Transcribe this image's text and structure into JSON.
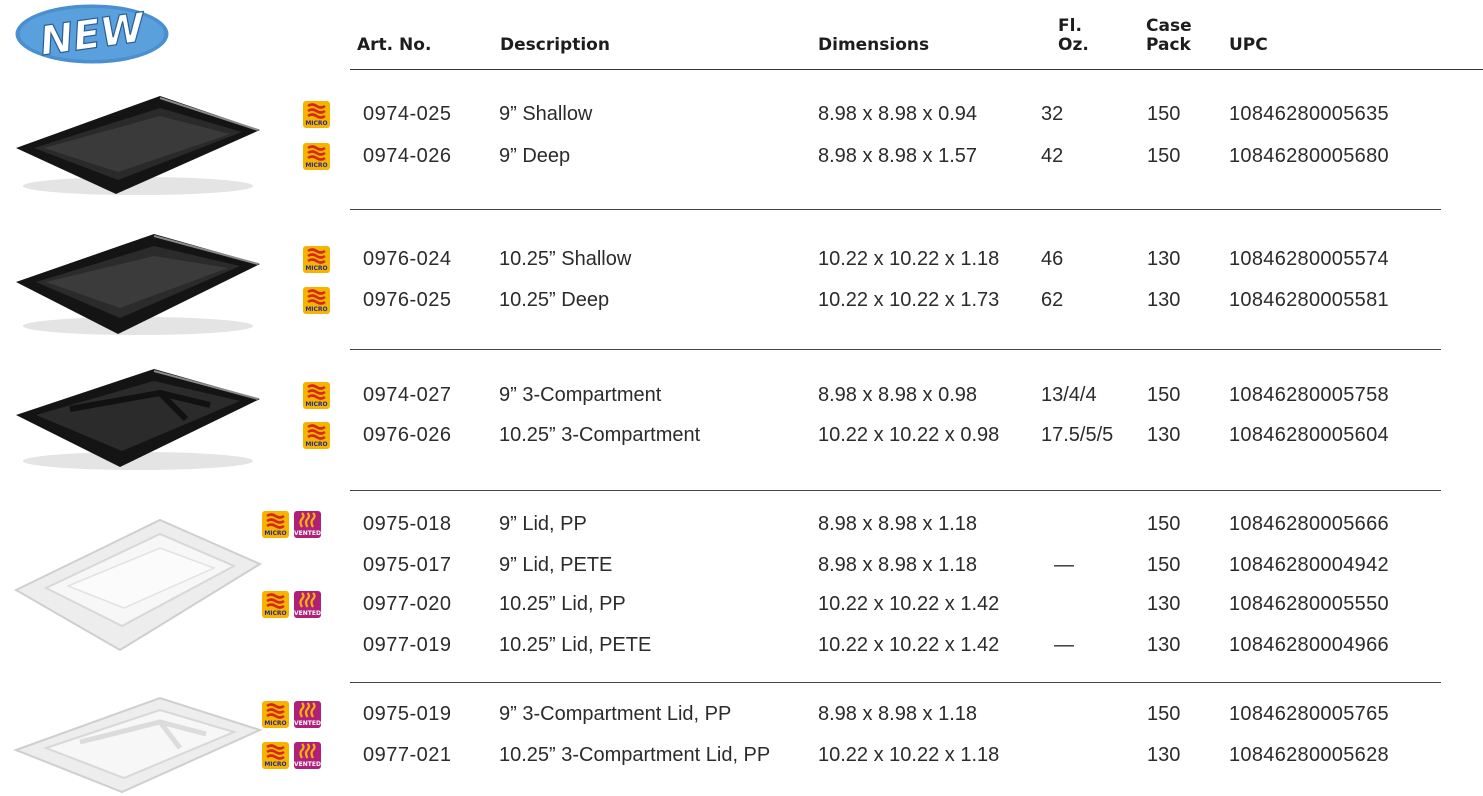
{
  "badge": {
    "text": "NEW"
  },
  "header": {
    "art_no": "Art. No.",
    "description": "Description",
    "dimensions": "Dimensions",
    "fl_oz_line1": "Fl.",
    "fl_oz_line2": "Oz.",
    "case_pack_line1": "Case",
    "case_pack_line2": "Pack",
    "upc": "UPC"
  },
  "icons": {
    "micro_label": "MICRO",
    "vented_label": "VENTED",
    "micro_color": "#f5b400",
    "vented_color": "#b0207a"
  },
  "rows": [
    {
      "art": "0974-025",
      "desc": "9” Shallow",
      "dim": "8.98 x 8.98 x 0.94",
      "oz": "32",
      "case": "150",
      "upc": "10846280005635"
    },
    {
      "art": "0974-026",
      "desc": "9” Deep",
      "dim": "8.98 x 8.98 x 1.57",
      "oz": "42",
      "case": "150",
      "upc": "10846280005680"
    },
    {
      "art": "0976-024",
      "desc": "10.25” Shallow",
      "dim": "10.22 x 10.22 x 1.18",
      "oz": "46",
      "case": "130",
      "upc": "10846280005574"
    },
    {
      "art": "0976-025",
      "desc": "10.25” Deep",
      "dim": "10.22 x 10.22 x 1.73",
      "oz": "62",
      "case": "130",
      "upc": "10846280005581"
    },
    {
      "art": "0974-027",
      "desc": "9” 3-Compartment",
      "dim": "8.98 x 8.98 x 0.98",
      "oz": "13/4/4",
      "case": "150",
      "upc": "10846280005758"
    },
    {
      "art": "0976-026",
      "desc": "10.25” 3-Compartment",
      "dim": "10.22 x 10.22 x 0.98",
      "oz": "17.5/5/5",
      "case": "130",
      "upc": "10846280005604"
    },
    {
      "art": "0975-018",
      "desc": "9” Lid, PP",
      "dim": "8.98 x 8.98 x 1.18",
      "oz": "",
      "case": "150",
      "upc": "10846280005666"
    },
    {
      "art": "0975-017",
      "desc": "9” Lid, PETE",
      "dim": "8.98 x 8.98 x 1.18",
      "oz": "—",
      "case": "150",
      "upc": "10846280004942"
    },
    {
      "art": "0977-020",
      "desc": "10.25” Lid, PP",
      "dim": "10.22 x 10.22 x 1.42",
      "oz": "",
      "case": "130",
      "upc": "10846280005550"
    },
    {
      "art": "0977-019",
      "desc": "10.25” Lid, PETE",
      "dim": "10.22 x 10.22 x 1.42",
      "oz": "—",
      "case": "130",
      "upc": "10846280004966"
    },
    {
      "art": "0975-019",
      "desc": "9” 3-Compartment Lid, PP",
      "dim": "8.98 x 8.98 x 1.18",
      "oz": "",
      "case": "150",
      "upc": "10846280005765"
    },
    {
      "art": "0977-021",
      "desc": "10.25” 3-Compartment Lid, PP",
      "dim": "10.22 x 10.22 x 1.18",
      "oz": "",
      "case": "130",
      "upc": "10846280005628"
    }
  ]
}
